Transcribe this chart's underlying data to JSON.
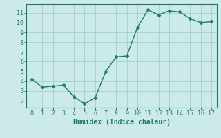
{
  "x": [
    0,
    1,
    2,
    3,
    4,
    5,
    6,
    7,
    8,
    9,
    10,
    11,
    12,
    13,
    14,
    15,
    16,
    17
  ],
  "y": [
    4.2,
    3.4,
    3.5,
    3.6,
    2.4,
    1.7,
    2.3,
    5.0,
    6.5,
    6.6,
    9.5,
    11.3,
    10.8,
    11.2,
    11.1,
    10.4,
    10.0,
    10.1
  ],
  "line_color": "#1a7a6e",
  "marker": "D",
  "marker_size": 2.5,
  "bg_color": "#cceae7",
  "grid_color": "#aad4d0",
  "xlabel": "Humidex (Indice chaleur)",
  "xlim": [
    -0.5,
    17.5
  ],
  "ylim": [
    1.3,
    11.9
  ],
  "yticks": [
    2,
    3,
    4,
    5,
    6,
    7,
    8,
    9,
    10,
    11
  ],
  "xticks": [
    0,
    1,
    2,
    3,
    4,
    5,
    6,
    7,
    8,
    9,
    10,
    11,
    12,
    13,
    14,
    15,
    16,
    17
  ]
}
